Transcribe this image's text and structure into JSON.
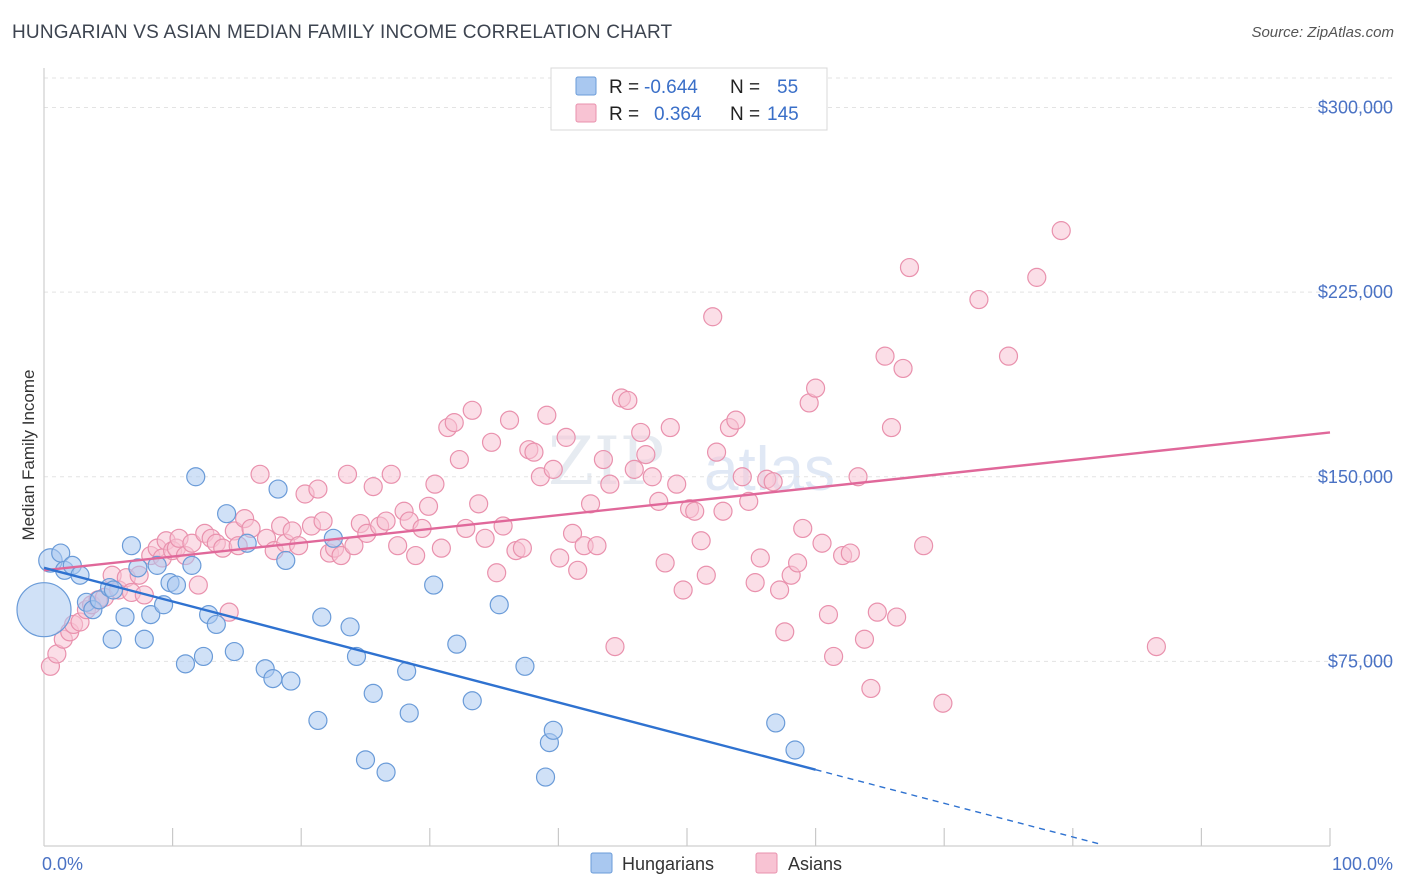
{
  "header": {
    "title": "HUNGARIAN VS ASIAN MEDIAN FAMILY INCOME CORRELATION CHART",
    "source": "Source: ZipAtlas.com"
  },
  "legend": {
    "r_label": "R =",
    "n_label": "N =",
    "hungarians": {
      "r": "-0.644",
      "n": "55"
    },
    "asians": {
      "r": "0.364",
      "n": "145"
    }
  },
  "bottom_legend": {
    "hungarians": "Hungarians",
    "asians": "Asians"
  },
  "watermark": {
    "zip": "ZIP",
    "atlas": "atlas"
  },
  "colors": {
    "hungarians_fill": "#a9c8f0",
    "hungarians_stroke": "#6a9bd8",
    "hungarians_line": "#2f72d0",
    "asians_fill": "#f8c3d3",
    "asians_stroke": "#e991ad",
    "asians_line": "#e0689a"
  },
  "chart_data": {
    "type": "scatter",
    "title": "HUNGARIAN VS ASIAN MEDIAN FAMILY INCOME CORRELATION CHART",
    "xlabel": "",
    "ylabel": "Median Family Income",
    "xlim": [
      0,
      100
    ],
    "ylim": [
      0,
      312000
    ],
    "x_tick_labels": [
      "0.0%",
      "100.0%"
    ],
    "y_ticks": [
      75000,
      150000,
      225000,
      300000
    ],
    "y_tick_labels": [
      "$75,000",
      "$150,000",
      "$225,000",
      "$300,000"
    ],
    "grid": true,
    "legend_position": "top-center",
    "series": [
      {
        "name": "Hungarians",
        "r": -0.644,
        "n": 55,
        "trend": {
          "x0": 0,
          "y0": 113000,
          "x1": 60,
          "y1": 31000,
          "dashed_to_x": 82
        },
        "points": [
          [
            0,
            96000,
            3
          ],
          [
            0.5,
            116000,
            1.3
          ],
          [
            1.3,
            119000,
            1
          ],
          [
            1.6,
            112000,
            1
          ],
          [
            2.2,
            114000,
            1
          ],
          [
            2.8,
            110000,
            1
          ],
          [
            3.3,
            99000,
            1
          ],
          [
            3.8,
            96000,
            1
          ],
          [
            4.3,
            100000,
            1
          ],
          [
            5.1,
            105000,
            1
          ],
          [
            5.4,
            104000,
            1
          ],
          [
            5.3,
            84000,
            1
          ],
          [
            6.3,
            93000,
            1
          ],
          [
            6.8,
            122000,
            1
          ],
          [
            7.3,
            113000,
            1
          ],
          [
            7.8,
            84000,
            1
          ],
          [
            8.3,
            94000,
            1
          ],
          [
            8.8,
            114000,
            1
          ],
          [
            9.3,
            98000,
            1
          ],
          [
            9.8,
            107000,
            1
          ],
          [
            10.3,
            106000,
            1
          ],
          [
            11.0,
            74000,
            1
          ],
          [
            11.5,
            114000,
            1
          ],
          [
            11.8,
            150000,
            1
          ],
          [
            12.4,
            77000,
            1
          ],
          [
            12.8,
            94000,
            1
          ],
          [
            13.4,
            90000,
            1
          ],
          [
            14.2,
            135000,
            1
          ],
          [
            14.8,
            79000,
            1
          ],
          [
            15.8,
            123000,
            1
          ],
          [
            17.2,
            72000,
            1
          ],
          [
            17.8,
            68000,
            1
          ],
          [
            18.2,
            145000,
            1
          ],
          [
            18.8,
            116000,
            1
          ],
          [
            19.2,
            67000,
            1
          ],
          [
            21.3,
            51000,
            1
          ],
          [
            21.6,
            93000,
            1
          ],
          [
            22.5,
            125000,
            1
          ],
          [
            23.8,
            89000,
            1
          ],
          [
            24.3,
            77000,
            1
          ],
          [
            25.0,
            35000,
            1
          ],
          [
            25.6,
            62000,
            1
          ],
          [
            26.6,
            30000,
            1
          ],
          [
            28.2,
            71000,
            1
          ],
          [
            28.4,
            54000,
            1
          ],
          [
            30.3,
            106000,
            1
          ],
          [
            32.1,
            82000,
            1
          ],
          [
            33.3,
            59000,
            1
          ],
          [
            35.4,
            98000,
            1
          ],
          [
            37.4,
            73000,
            1
          ],
          [
            39.0,
            28000,
            1
          ],
          [
            39.3,
            42000,
            1
          ],
          [
            39.6,
            47000,
            1
          ],
          [
            56.9,
            50000,
            1
          ],
          [
            58.4,
            39000,
            1
          ]
        ]
      },
      {
        "name": "Asians",
        "r": 0.364,
        "n": 145,
        "trend": {
          "x0": 0,
          "y0": 112000,
          "x1": 100,
          "y1": 168000
        },
        "points": [
          [
            0.5,
            73000,
            1
          ],
          [
            1.0,
            78000,
            1
          ],
          [
            1.5,
            84000,
            1
          ],
          [
            2.0,
            87000,
            1
          ],
          [
            2.3,
            90000,
            1
          ],
          [
            2.8,
            91000,
            1
          ],
          [
            3.3,
            96000,
            1
          ],
          [
            3.7,
            98000,
            1
          ],
          [
            4.2,
            100000,
            1
          ],
          [
            4.7,
            101000,
            1
          ],
          [
            5.3,
            110000,
            1
          ],
          [
            5.8,
            104000,
            1
          ],
          [
            6.4,
            109000,
            1
          ],
          [
            6.8,
            103000,
            1
          ],
          [
            7.4,
            110000,
            1
          ],
          [
            7.8,
            102000,
            1
          ],
          [
            8.3,
            118000,
            1
          ],
          [
            8.8,
            121000,
            1
          ],
          [
            9.2,
            117000,
            1
          ],
          [
            9.5,
            124000,
            1
          ],
          [
            10.0,
            120000,
            1
          ],
          [
            10.3,
            121000,
            1
          ],
          [
            10.5,
            125000,
            1
          ],
          [
            11.0,
            118000,
            1
          ],
          [
            11.5,
            123000,
            1
          ],
          [
            12.0,
            106000,
            1
          ],
          [
            12.5,
            127000,
            1
          ],
          [
            13.0,
            125000,
            1
          ],
          [
            13.4,
            123000,
            1
          ],
          [
            13.9,
            121000,
            1
          ],
          [
            14.4,
            95000,
            1
          ],
          [
            14.8,
            128000,
            1
          ],
          [
            15.1,
            122000,
            1
          ],
          [
            15.6,
            133000,
            1
          ],
          [
            16.1,
            129000,
            1
          ],
          [
            16.8,
            151000,
            1
          ],
          [
            17.3,
            125000,
            1
          ],
          [
            17.9,
            120000,
            1
          ],
          [
            18.4,
            130000,
            1
          ],
          [
            18.8,
            123000,
            1
          ],
          [
            19.3,
            128000,
            1
          ],
          [
            19.8,
            122000,
            1
          ],
          [
            20.3,
            143000,
            1
          ],
          [
            20.8,
            130000,
            1
          ],
          [
            21.3,
            145000,
            1
          ],
          [
            21.7,
            132000,
            1
          ],
          [
            22.2,
            119000,
            1
          ],
          [
            22.6,
            121000,
            1
          ],
          [
            23.1,
            118000,
            1
          ],
          [
            23.6,
            151000,
            1
          ],
          [
            24.1,
            122000,
            1
          ],
          [
            24.6,
            131000,
            1
          ],
          [
            25.1,
            127000,
            1
          ],
          [
            25.6,
            146000,
            1
          ],
          [
            26.1,
            130000,
            1
          ],
          [
            26.6,
            132000,
            1
          ],
          [
            27.0,
            151000,
            1
          ],
          [
            27.5,
            122000,
            1
          ],
          [
            28.0,
            136000,
            1
          ],
          [
            28.4,
            132000,
            1
          ],
          [
            28.9,
            118000,
            1
          ],
          [
            29.4,
            129000,
            1
          ],
          [
            29.9,
            138000,
            1
          ],
          [
            30.4,
            147000,
            1
          ],
          [
            30.9,
            121000,
            1
          ],
          [
            31.4,
            170000,
            1
          ],
          [
            31.9,
            172000,
            1
          ],
          [
            32.3,
            157000,
            1
          ],
          [
            32.8,
            129000,
            1
          ],
          [
            33.3,
            177000,
            1
          ],
          [
            33.8,
            139000,
            1
          ],
          [
            34.3,
            125000,
            1
          ],
          [
            34.8,
            164000,
            1
          ],
          [
            35.2,
            111000,
            1
          ],
          [
            35.7,
            130000,
            1
          ],
          [
            36.2,
            173000,
            1
          ],
          [
            36.7,
            120000,
            1
          ],
          [
            37.2,
            121000,
            1
          ],
          [
            37.7,
            161000,
            1
          ],
          [
            38.1,
            160000,
            1
          ],
          [
            38.6,
            150000,
            1
          ],
          [
            39.1,
            175000,
            1
          ],
          [
            39.6,
            153000,
            1
          ],
          [
            40.1,
            117000,
            1
          ],
          [
            40.6,
            166000,
            1
          ],
          [
            41.1,
            127000,
            1
          ],
          [
            41.5,
            112000,
            1
          ],
          [
            42.0,
            122000,
            1
          ],
          [
            42.5,
            139000,
            1
          ],
          [
            43.0,
            122000,
            1
          ],
          [
            43.5,
            157000,
            1
          ],
          [
            44.0,
            147000,
            1
          ],
          [
            44.4,
            81000,
            1
          ],
          [
            44.9,
            182000,
            1
          ],
          [
            45.4,
            181000,
            1
          ],
          [
            45.9,
            153000,
            1
          ],
          [
            46.4,
            168000,
            1
          ],
          [
            46.8,
            159000,
            1
          ],
          [
            47.3,
            150000,
            1
          ],
          [
            47.8,
            140000,
            1
          ],
          [
            48.3,
            115000,
            1
          ],
          [
            48.7,
            170000,
            1
          ],
          [
            49.2,
            147000,
            1
          ],
          [
            49.7,
            104000,
            1
          ],
          [
            50.2,
            137000,
            1
          ],
          [
            50.6,
            136000,
            1
          ],
          [
            51.1,
            124000,
            1
          ],
          [
            51.5,
            110000,
            1
          ],
          [
            52.0,
            215000,
            1
          ],
          [
            52.3,
            160000,
            1
          ],
          [
            52.8,
            136000,
            1
          ],
          [
            53.3,
            170000,
            1
          ],
          [
            53.8,
            173000,
            1
          ],
          [
            54.3,
            150000,
            1
          ],
          [
            54.8,
            140000,
            1
          ],
          [
            55.3,
            107000,
            1
          ],
          [
            55.7,
            117000,
            1
          ],
          [
            56.2,
            149000,
            1
          ],
          [
            56.7,
            148000,
            1
          ],
          [
            57.2,
            104000,
            1
          ],
          [
            57.6,
            87000,
            1
          ],
          [
            58.1,
            110000,
            1
          ],
          [
            58.6,
            115000,
            1
          ],
          [
            59.0,
            129000,
            1
          ],
          [
            59.5,
            180000,
            1
          ],
          [
            60.0,
            186000,
            1
          ],
          [
            60.5,
            123000,
            1
          ],
          [
            61.0,
            94000,
            1
          ],
          [
            61.4,
            77000,
            1
          ],
          [
            62.1,
            118000,
            1
          ],
          [
            62.7,
            119000,
            1
          ],
          [
            63.3,
            150000,
            1
          ],
          [
            63.8,
            84000,
            1
          ],
          [
            64.3,
            64000,
            1
          ],
          [
            64.8,
            95000,
            1
          ],
          [
            65.4,
            199000,
            1
          ],
          [
            65.9,
            170000,
            1
          ],
          [
            66.3,
            93000,
            1
          ],
          [
            66.8,
            194000,
            1
          ],
          [
            67.3,
            235000,
            1
          ],
          [
            68.4,
            122000,
            1
          ],
          [
            69.9,
            58000,
            1
          ],
          [
            72.7,
            222000,
            1
          ],
          [
            75.0,
            199000,
            1
          ],
          [
            77.2,
            231000,
            1
          ],
          [
            79.1,
            250000,
            1
          ],
          [
            86.5,
            81000,
            1
          ]
        ]
      }
    ]
  }
}
